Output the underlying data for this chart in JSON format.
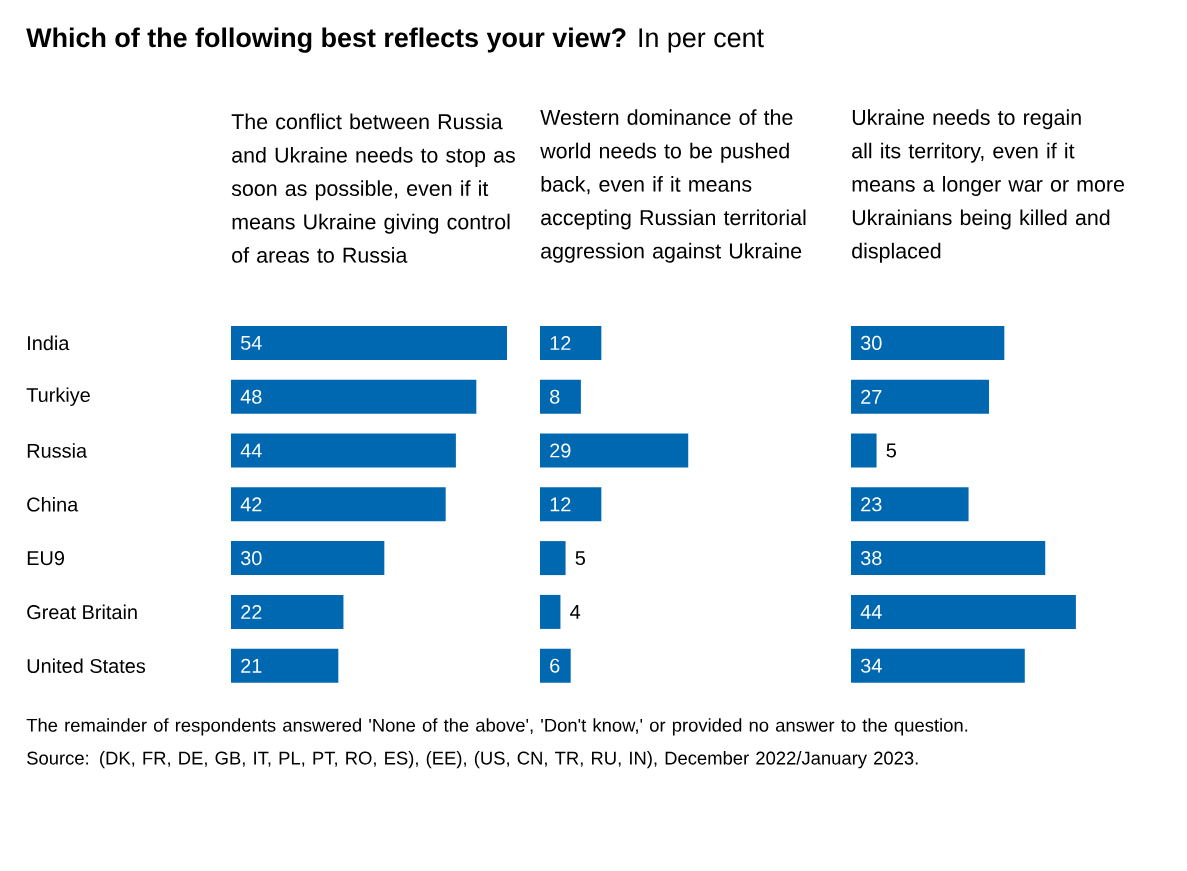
{
  "chart_data": [
    {
      "type": "bar",
      "orientation": "horizontal",
      "title": "**Which of the following best reflects your view?** In per cent",
      "subtitle": "The conflict between Russia and Ukraine needs to stop as soon as possible, even if it means Ukraine giving control of areas to Russia",
      "categories": [
        "India",
        "Turkiye",
        "Russia",
        "China",
        "EU9",
        "Great Britain",
        "United States"
      ],
      "values": [
        54,
        48,
        44,
        42,
        30,
        22,
        21
      ],
      "color": "#0068b1",
      "data_labels": true,
      "tick_labels": "y",
      "annotations": [
        "The remainder of respondents answered 'None of the above', 'Don't know,' or provided no answer to the question.",
        "Source: (DK, FR, DE, GB, IT, PL, PT, RO, ES), (EE), (US, CN, TR, RU, IN), December 2022/January 2023."
      ]
    },
    {
      "type": "bar",
      "orientation": "horizontal",
      "title": "Western dominance of the world needs to be pushed back, even if it means accepting Russian territorial aggression against Ukraine",
      "values": [
        12,
        8,
        29,
        12,
        5,
        4,
        6
      ],
      "color": "#0068b1",
      "data_labels": true,
      "tick_labels": false
    },
    {
      "type": "bar",
      "orientation": "horizontal",
      "title": "Ukraine needs to regain all its territory, even if it means a longer war or more Ukrainians being killed and displaced",
      "values": [
        30,
        27,
        5,
        23,
        38,
        44,
        34
      ],
      "color": "#0068b1",
      "data_labels": true,
      "tick_labels": false
    }
  ]
}
